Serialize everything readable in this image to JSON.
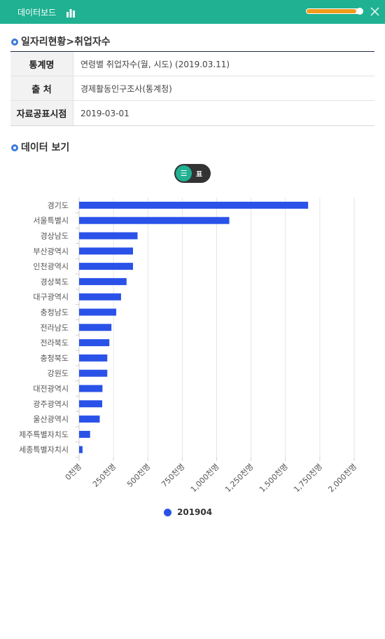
{
  "header": {
    "title": "데이터보드",
    "progress": 0.94
  },
  "section1": {
    "title": "일자리현황>취업자수"
  },
  "info": [
    {
      "label": "통계명",
      "value": "연령별 취업자수(월, 시도) (2019.03.11)"
    },
    {
      "label": "출 처",
      "value": "경제활동인구조사(통계청)"
    },
    {
      "label": "자료공표시점",
      "value": "2019-03-01"
    }
  ],
  "section2": {
    "title": "데이터 보기"
  },
  "toggle": {
    "list_icon": "☰",
    "table_label": "표"
  },
  "colors": {
    "accent": "#1fb192",
    "bar": "#2a52e8",
    "progress": "#f39b1a"
  },
  "chart_data": {
    "type": "bar",
    "orientation": "horizontal",
    "categories": [
      "경기도",
      "서울특별시",
      "경상남도",
      "부산광역시",
      "인천광역시",
      "경상북도",
      "대구광역시",
      "충청남도",
      "전라남도",
      "전라북도",
      "충청북도",
      "강원도",
      "대전광역시",
      "광주광역시",
      "울산광역시",
      "제주특별자치도",
      "세종특별자치시"
    ],
    "series": [
      {
        "name": "201904",
        "values": [
          1665,
          1092,
          425,
          392,
          392,
          345,
          305,
          270,
          235,
          220,
          205,
          205,
          170,
          168,
          150,
          80,
          25
        ]
      }
    ],
    "x_ticks": [
      "0천명",
      "250천명",
      "500천명",
      "750천명",
      "1,000천명",
      "1,250천명",
      "1,500천명",
      "1,750천명",
      "2,000천명"
    ],
    "xlim": [
      0,
      2000
    ],
    "grid": true,
    "legend": "bottom"
  }
}
